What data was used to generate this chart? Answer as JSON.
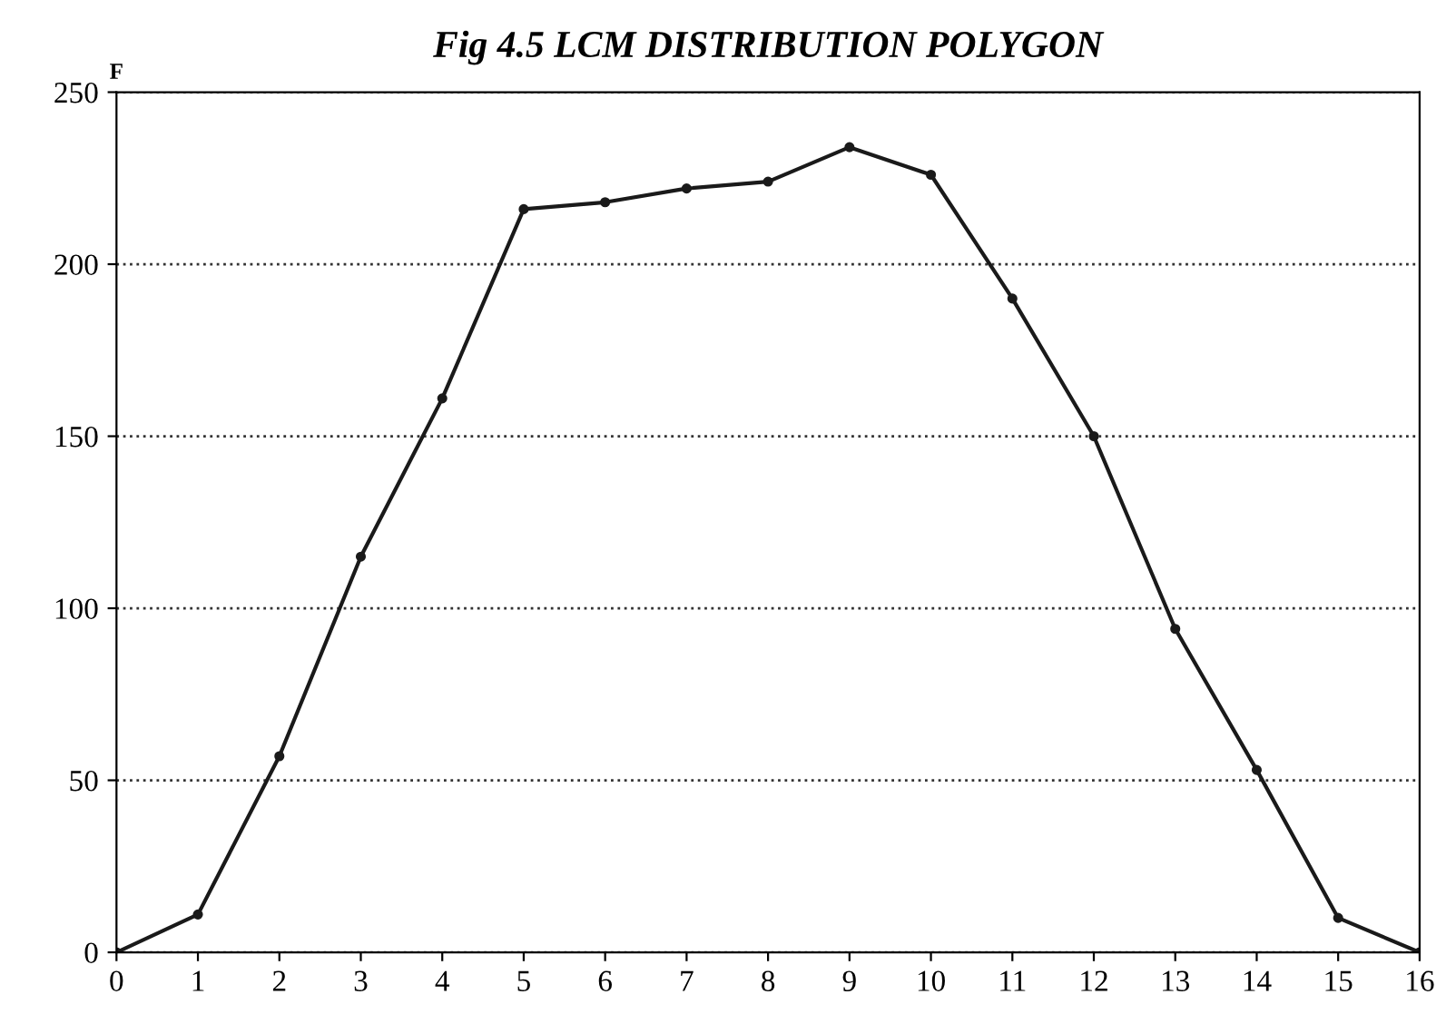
{
  "chart_data": {
    "type": "line",
    "title": "Fig 4.5 LCM DISTRIBUTION POLYGON",
    "ylabel": "F",
    "x": [
      0,
      1,
      2,
      3,
      4,
      5,
      6,
      7,
      8,
      9,
      10,
      11,
      12,
      13,
      14,
      15,
      16
    ],
    "series": [
      {
        "color": "#1a1a1a",
        "values": [
          0,
          11,
          57,
          115,
          161,
          216,
          218,
          222,
          224,
          234,
          226,
          190,
          150,
          94,
          53,
          10,
          0
        ]
      }
    ],
    "xlim": [
      0,
      16
    ],
    "xticks": [
      0,
      1,
      2,
      3,
      4,
      5,
      6,
      7,
      8,
      9,
      10,
      11,
      12,
      13,
      14,
      15,
      16
    ],
    "ylim": [
      0,
      250
    ],
    "yticks": [
      0,
      50,
      100,
      150,
      200,
      250
    ],
    "grid": "y",
    "marker": "circle",
    "line_style": "solid"
  }
}
